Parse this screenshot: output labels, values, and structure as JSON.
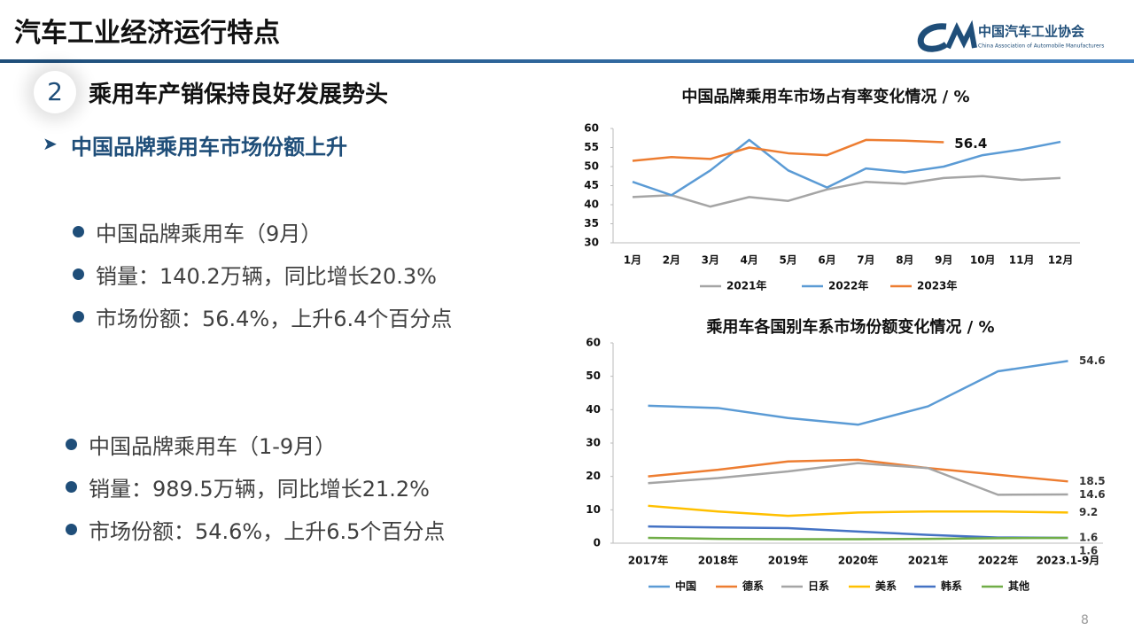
{
  "header": {
    "title": "汽车工业经济运行特点",
    "logo_name": "中国汽车工业协会",
    "logo_english": "China Association of Automobile Manufacturers"
  },
  "section": {
    "number": "2",
    "title": "乘用车产销保持良好发展势头",
    "subtitle": "中国品牌乘用车市场份额上升"
  },
  "bullets_monthly": [
    "中国品牌乘用车（9月）",
    "销量：140.2万辆，同比增长20.3%",
    "市场份额：56.4%，上升6.4个百分点"
  ],
  "bullets_ytd": [
    "中国品牌乘用车（1-9月）",
    "销量：989.5万辆，同比增长21.2%",
    "市场份额：54.6%，上升6.5个百分点"
  ],
  "page_number": "8",
  "chart_data": [
    {
      "type": "line",
      "title": "中国品牌乘用车市场占有率变化情况 / %",
      "categories": [
        "1月",
        "2月",
        "3月",
        "4月",
        "5月",
        "6月",
        "7月",
        "8月",
        "9月",
        "10月",
        "11月",
        "12月"
      ],
      "series": [
        {
          "name": "2021年",
          "color": "#a5a5a5",
          "values": [
            42,
            42.5,
            39.5,
            42,
            41,
            44,
            46,
            45.5,
            47,
            47.5,
            46.5,
            47
          ]
        },
        {
          "name": "2022年",
          "color": "#5b9bd5",
          "values": [
            46,
            42.5,
            49,
            57,
            49,
            44.5,
            49.5,
            48.5,
            50,
            53,
            54.5,
            56.5
          ]
        },
        {
          "name": "2023年",
          "color": "#ed7d31",
          "values": [
            51.5,
            52.5,
            52,
            55,
            53.5,
            53,
            57,
            56.8,
            56.4,
            null,
            null,
            null
          ]
        }
      ],
      "annotation": "56.4",
      "ylim": [
        30,
        60
      ],
      "yticks": [
        30,
        35,
        40,
        45,
        50,
        55,
        60
      ],
      "legend": "bottom"
    },
    {
      "type": "line",
      "title": "乘用车各国别车系市场份额变化情况 / %",
      "categories": [
        "2017年",
        "2018年",
        "2019年",
        "2020年",
        "2021年",
        "2022年",
        "2023.1-9月"
      ],
      "series": [
        {
          "name": "中国",
          "color": "#5b9bd5",
          "values": [
            41.2,
            40.5,
            37.5,
            35.5,
            41,
            51.5,
            54.6
          ]
        },
        {
          "name": "德系",
          "color": "#ed7d31",
          "values": [
            20,
            22,
            24.5,
            25,
            22.5,
            20.5,
            18.5
          ]
        },
        {
          "name": "日系",
          "color": "#a5a5a5",
          "values": [
            18,
            19.5,
            21.5,
            24,
            22.5,
            14.5,
            14.6
          ]
        },
        {
          "name": "美系",
          "color": "#ffc000",
          "values": [
            11.2,
            9.5,
            8.2,
            9.2,
            9.5,
            9.5,
            9.2
          ]
        },
        {
          "name": "韩系",
          "color": "#4472c4",
          "values": [
            5,
            4.7,
            4.5,
            3.5,
            2.5,
            1.7,
            1.6
          ]
        },
        {
          "name": "其他",
          "color": "#70ad47",
          "values": [
            1.6,
            1.3,
            1.2,
            1.2,
            1.3,
            1.5,
            1.6
          ]
        }
      ],
      "label_last": true,
      "ylim": [
        0,
        60
      ],
      "yticks": [
        0,
        10,
        20,
        30,
        40,
        50,
        60
      ],
      "legend": "bottom"
    }
  ]
}
